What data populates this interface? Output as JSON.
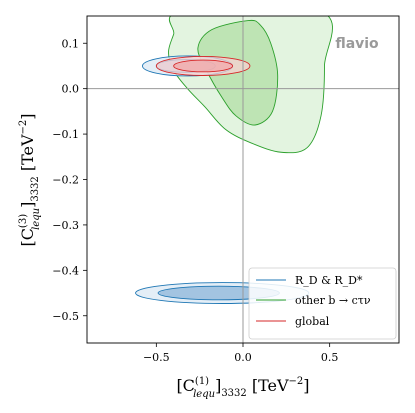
{
  "chart_data": {
    "type": "contour",
    "brand_label": "flavio",
    "xlim": [
      -0.9,
      0.9
    ],
    "ylim": [
      -0.56,
      0.16
    ],
    "x_ticks": [
      {
        "value": -0.5,
        "label": "−0.5"
      },
      {
        "value": 0.0,
        "label": "0.0"
      },
      {
        "value": 0.5,
        "label": "0.5"
      }
    ],
    "y_ticks": [
      {
        "value": 0.1,
        "label": "0.1"
      },
      {
        "value": 0.0,
        "label": "0.0"
      },
      {
        "value": -0.1,
        "label": "−0.1"
      },
      {
        "value": -0.2,
        "label": "−0.2"
      },
      {
        "value": -0.3,
        "label": "−0.3"
      },
      {
        "value": -0.4,
        "label": "−0.4"
      },
      {
        "value": -0.5,
        "label": "−0.5"
      }
    ],
    "xlabel": {
      "main": "[C",
      "sup": "(1)",
      "sub": "lequ",
      "rest": "]",
      "sub2": "3332",
      "unit": " [TeV",
      "exp": "−2",
      "close": "]"
    },
    "ylabel": {
      "main": "[C",
      "sup": "(3)",
      "sub": "lequ",
      "rest": "]",
      "sub2": "3332",
      "unit": " [TeV",
      "exp": "−2",
      "close": "]"
    },
    "reference_lines": {
      "x": 0.0,
      "y": 0.0
    },
    "legend": {
      "position": "lower-right",
      "entries": [
        {
          "name": "R_D & R_D*",
          "color": "#1f77b4"
        },
        {
          "name": "other b → cτν",
          "color": "#2ca02c"
        },
        {
          "name": "global",
          "color": "#d62728"
        }
      ]
    },
    "regions": [
      {
        "series": "other b → cτν",
        "level": "outer",
        "color": "#2ca02c",
        "fill": "#d9f0d5",
        "points": [
          [
            -0.35,
            0.17
          ],
          [
            -0.4,
            0.12
          ],
          [
            -0.43,
            0.08
          ],
          [
            -0.4,
            0.04
          ],
          [
            -0.32,
            0.0
          ],
          [
            -0.22,
            -0.04
          ],
          [
            -0.1,
            -0.09
          ],
          [
            0.05,
            -0.12
          ],
          [
            0.22,
            -0.14
          ],
          [
            0.37,
            -0.13
          ],
          [
            0.45,
            -0.06
          ],
          [
            0.47,
            0.05
          ],
          [
            0.45,
            0.17
          ]
        ]
      },
      {
        "series": "other b → cτν",
        "level": "inner",
        "color": "#2ca02c",
        "fill": "#b2dfa6",
        "points": [
          [
            0.03,
            0.15
          ],
          [
            -0.18,
            0.13
          ],
          [
            -0.26,
            0.09
          ],
          [
            -0.21,
            0.04
          ],
          [
            -0.12,
            -0.02
          ],
          [
            -0.04,
            -0.06
          ],
          [
            0.07,
            -0.08
          ],
          [
            0.17,
            -0.05
          ],
          [
            0.2,
            0.03
          ],
          [
            0.16,
            0.1
          ],
          [
            0.1,
            0.14
          ]
        ]
      },
      {
        "series": "R_D & R_D*",
        "level": "outer",
        "color": "#1f77b4",
        "fill": "#dbe8f4",
        "center": [
          -0.32,
          0.05
        ],
        "radii": [
          0.26,
          0.022
        ]
      },
      {
        "series": "R_D & R_D*",
        "level": "inner",
        "color": "#1f77b4",
        "fill": "#b4cfe8",
        "center": [
          -0.33,
          0.05
        ],
        "radii": [
          0.17,
          0.014
        ]
      },
      {
        "series": "R_D & R_D*",
        "level": "outer",
        "color": "#1f77b4",
        "fill": "#dbe8f4",
        "center": [
          -0.12,
          -0.45
        ],
        "radii": [
          0.5,
          0.023
        ]
      },
      {
        "series": "R_D & R_D*",
        "level": "inner",
        "color": "#1f77b4",
        "fill": "#8eb5da",
        "center": [
          -0.14,
          -0.45
        ],
        "radii": [
          0.35,
          0.015
        ]
      },
      {
        "series": "global",
        "level": "outer",
        "color": "#d62728",
        "fill": "#f7d2d2",
        "center": [
          -0.23,
          0.05
        ],
        "radii": [
          0.27,
          0.021
        ]
      },
      {
        "series": "global",
        "level": "inner",
        "color": "#d62728",
        "fill": "#f2a8a8",
        "center": [
          -0.23,
          0.05
        ],
        "radii": [
          0.17,
          0.013
        ]
      }
    ]
  }
}
